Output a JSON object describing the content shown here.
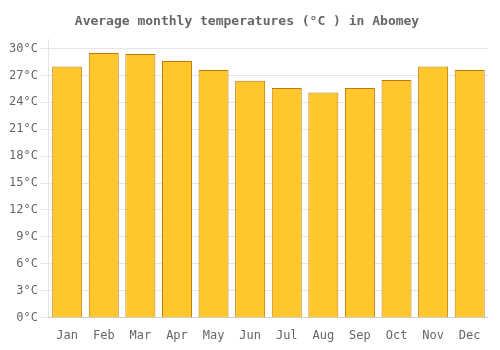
{
  "chart_data": {
    "type": "bar",
    "title": "Average monthly temperatures (°C ) in Abomey",
    "categories": [
      "Jan",
      "Feb",
      "Mar",
      "Apr",
      "May",
      "Jun",
      "Jul",
      "Aug",
      "Sep",
      "Oct",
      "Nov",
      "Dec"
    ],
    "values": [
      28.0,
      29.5,
      29.4,
      28.6,
      27.6,
      26.4,
      25.6,
      25.1,
      25.6,
      26.5,
      28.0,
      27.6
    ],
    "color": "#FFC72C",
    "ylim": [
      0,
      31
    ],
    "yticks": [
      {
        "value": 0,
        "label": "0°C"
      },
      {
        "value": 3,
        "label": "3°C"
      },
      {
        "value": 6,
        "label": "6°C"
      },
      {
        "value": 9,
        "label": "9°C"
      },
      {
        "value": 12,
        "label": "12°C"
      },
      {
        "value": 15,
        "label": "15°C"
      },
      {
        "value": 18,
        "label": "18°C"
      },
      {
        "value": 21,
        "label": "21°C"
      },
      {
        "value": 24,
        "label": "24°C"
      },
      {
        "value": 27,
        "label": "27°C"
      },
      {
        "value": 30,
        "label": "30°C"
      }
    ],
    "grid": true
  }
}
